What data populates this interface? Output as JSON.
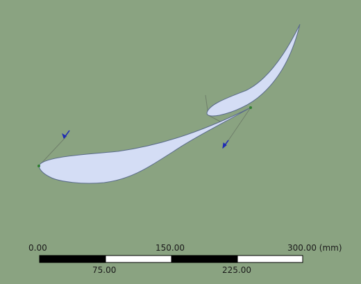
{
  "scale_bar": {
    "label_0": "0.00",
    "label_150": "150.00",
    "label_300": "300.00 (mm)",
    "label_75": "75.00",
    "label_225": "225.00"
  },
  "colors": {
    "background": "#8aa381",
    "airfoil_fill": "#d4ddf5",
    "airfoil_outline": "#5a6b8a",
    "construction_line": "#6f7f6a",
    "direction_arrow": "#1f2bb5",
    "vertex_point": "#2f7f2f"
  }
}
